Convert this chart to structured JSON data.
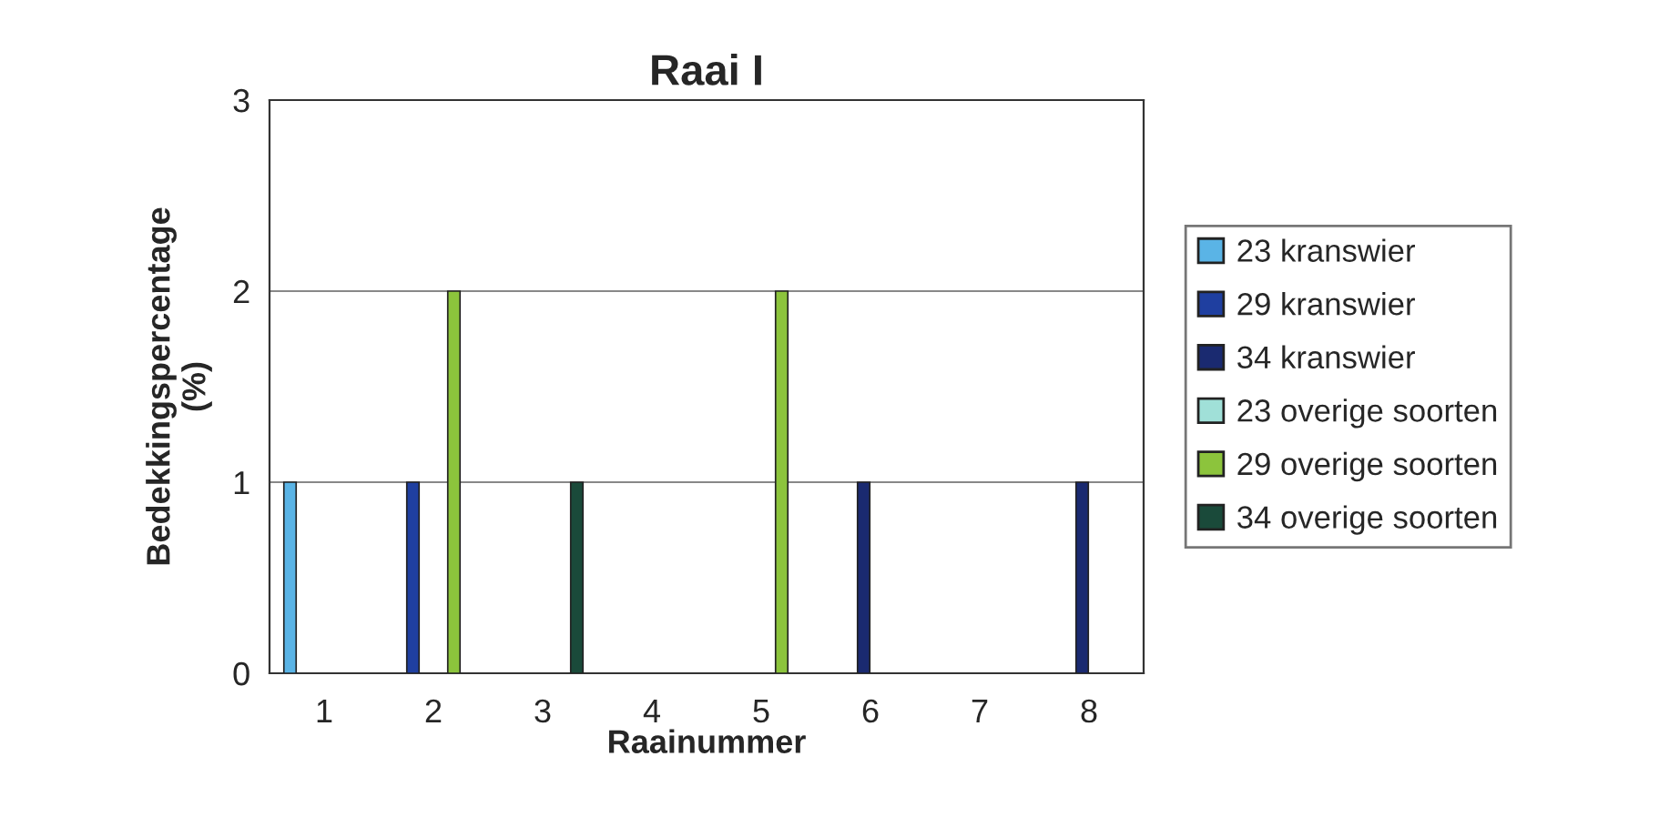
{
  "chart_data": {
    "type": "bar",
    "title": "Raai I",
    "xlabel": "Raainummer",
    "ylabel": "Bedekkingspercentage\n(%)",
    "categories": [
      "1",
      "2",
      "3",
      "4",
      "5",
      "6",
      "7",
      "8"
    ],
    "series": [
      {
        "name": "23 kranswier",
        "color": "#5ab4e6",
        "values": [
          1,
          null,
          null,
          null,
          null,
          null,
          null,
          null
        ]
      },
      {
        "name": "29 kranswier",
        "color": "#1f3fa0",
        "values": [
          null,
          1,
          null,
          null,
          null,
          null,
          null,
          null
        ]
      },
      {
        "name": "34 kranswier",
        "color": "#1a2a70",
        "values": [
          null,
          null,
          null,
          null,
          null,
          1,
          null,
          1
        ]
      },
      {
        "name": "23 overige soorten",
        "color": "#a0e0d8",
        "values": [
          null,
          null,
          null,
          null,
          null,
          null,
          null,
          null
        ]
      },
      {
        "name": "29 overige soorten",
        "color": "#8cc43c",
        "values": [
          null,
          2,
          null,
          null,
          2,
          null,
          null,
          null
        ]
      },
      {
        "name": "34 overige soorten",
        "color": "#1a4a3a",
        "values": [
          null,
          null,
          1,
          null,
          null,
          null,
          null,
          null
        ]
      }
    ],
    "ylim": [
      0,
      3
    ],
    "yticks": [
      0,
      1,
      2,
      3
    ],
    "grid": "y",
    "legend": "right"
  }
}
